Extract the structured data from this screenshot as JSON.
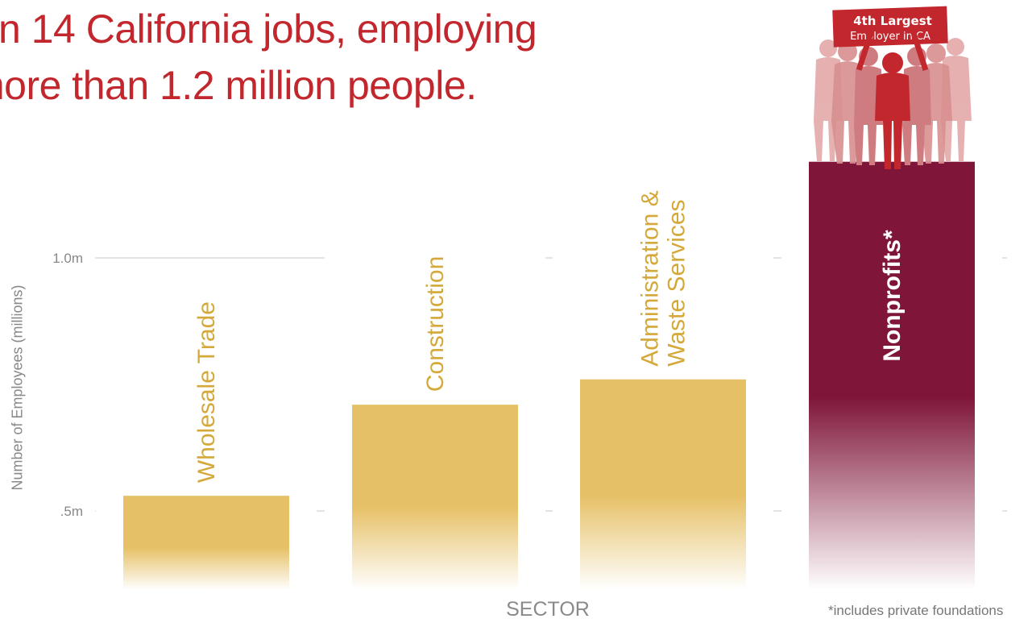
{
  "headline": {
    "line1": "n 14 California jobs, employing",
    "line2": "more than 1.2 million people."
  },
  "badge": {
    "line1": "4th Largest",
    "line2": "Employer in CA"
  },
  "footnote": "*includes private foundations",
  "colors": {
    "headline": "#c1272d",
    "sector_bar": "#e6c066",
    "sector_label": "#d4a93a",
    "nonprofit_bar": "#7f1539",
    "badge": "#c1272d",
    "grid": "#c8c8c8"
  },
  "chart_data": {
    "type": "bar",
    "xlabel": "SECTOR",
    "ylabel": "Number of Employees (millions)",
    "ytick_labels": [
      ".5m",
      "1.0m"
    ],
    "yticks": [
      0.5,
      1.0
    ],
    "ylim": [
      0.35,
      1.2
    ],
    "grid": true,
    "categories": [
      "Wholesale Trade",
      "Construction",
      "Administration & Waste Services",
      "Nonprofits*"
    ],
    "label_lines": [
      [
        "Wholesale Trade"
      ],
      [
        "Construction"
      ],
      [
        "Administration &",
        "Waste Services"
      ],
      [
        "Nonprofits*"
      ]
    ],
    "values": [
      0.53,
      0.71,
      0.76,
      1.19
    ],
    "highlight": "Nonprofits*"
  }
}
